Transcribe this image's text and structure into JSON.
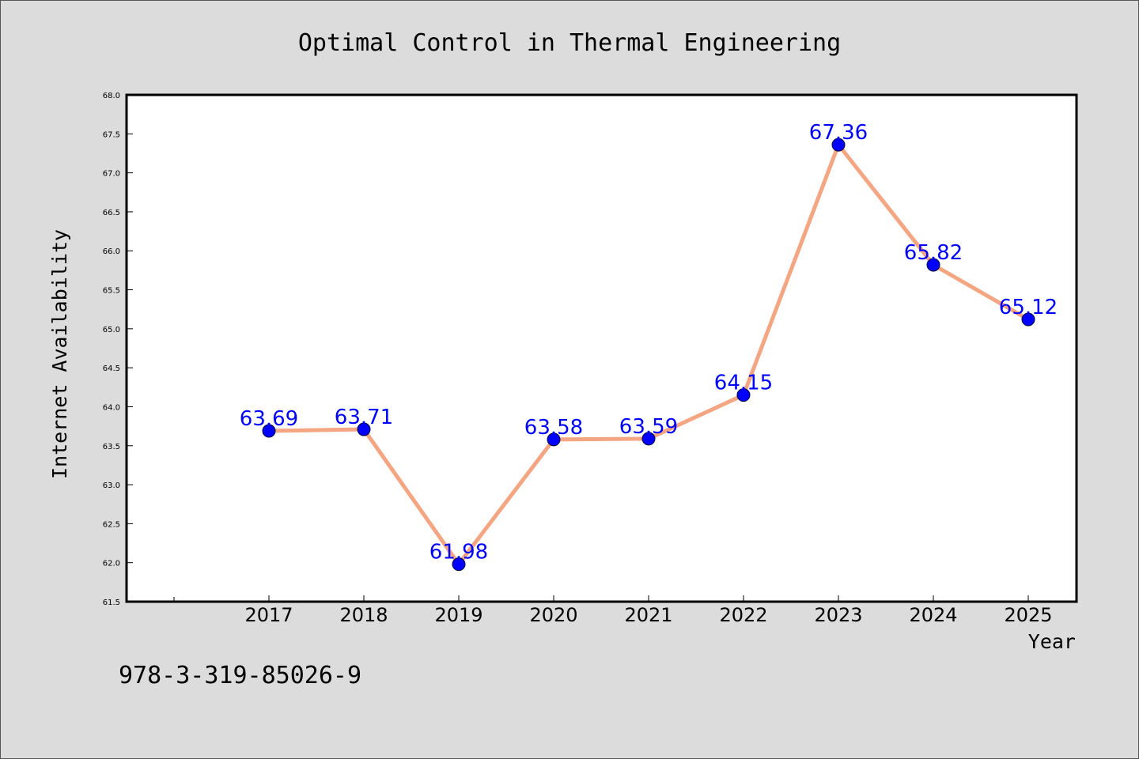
{
  "chart_data": {
    "type": "line",
    "title": "Optimal Control in Thermal Engineering",
    "xlabel": "Year",
    "ylabel": "Internet Availability",
    "categories": [
      "2017",
      "2018",
      "2019",
      "2020",
      "2021",
      "2022",
      "2023",
      "2024",
      "2025"
    ],
    "series": [
      {
        "values": [
          63.69,
          63.71,
          61.98,
          63.58,
          63.59,
          64.15,
          67.36,
          65.82,
          65.12
        ],
        "line_color": "#f4a582",
        "marker_color": "#0000ff"
      }
    ],
    "data_labels": [
      "63.69",
      "63.71",
      "61.98",
      "63.58",
      "63.59",
      "64.15",
      "67.36",
      "65.82",
      "65.12"
    ],
    "ylim": [
      61.5,
      68.0
    ],
    "yticks": [
      "61.5",
      "62.0",
      "62.5",
      "63.0",
      "63.5",
      "64.0",
      "64.5",
      "65.0",
      "65.5",
      "66.0",
      "66.5",
      "67.0",
      "67.5",
      "68.0"
    ],
    "grid": false,
    "legend": "none",
    "label_color": "#0000ff",
    "background": "#dcdcdc",
    "plot_background": "#ffffff"
  },
  "footnote": "978-3-319-85026-9"
}
